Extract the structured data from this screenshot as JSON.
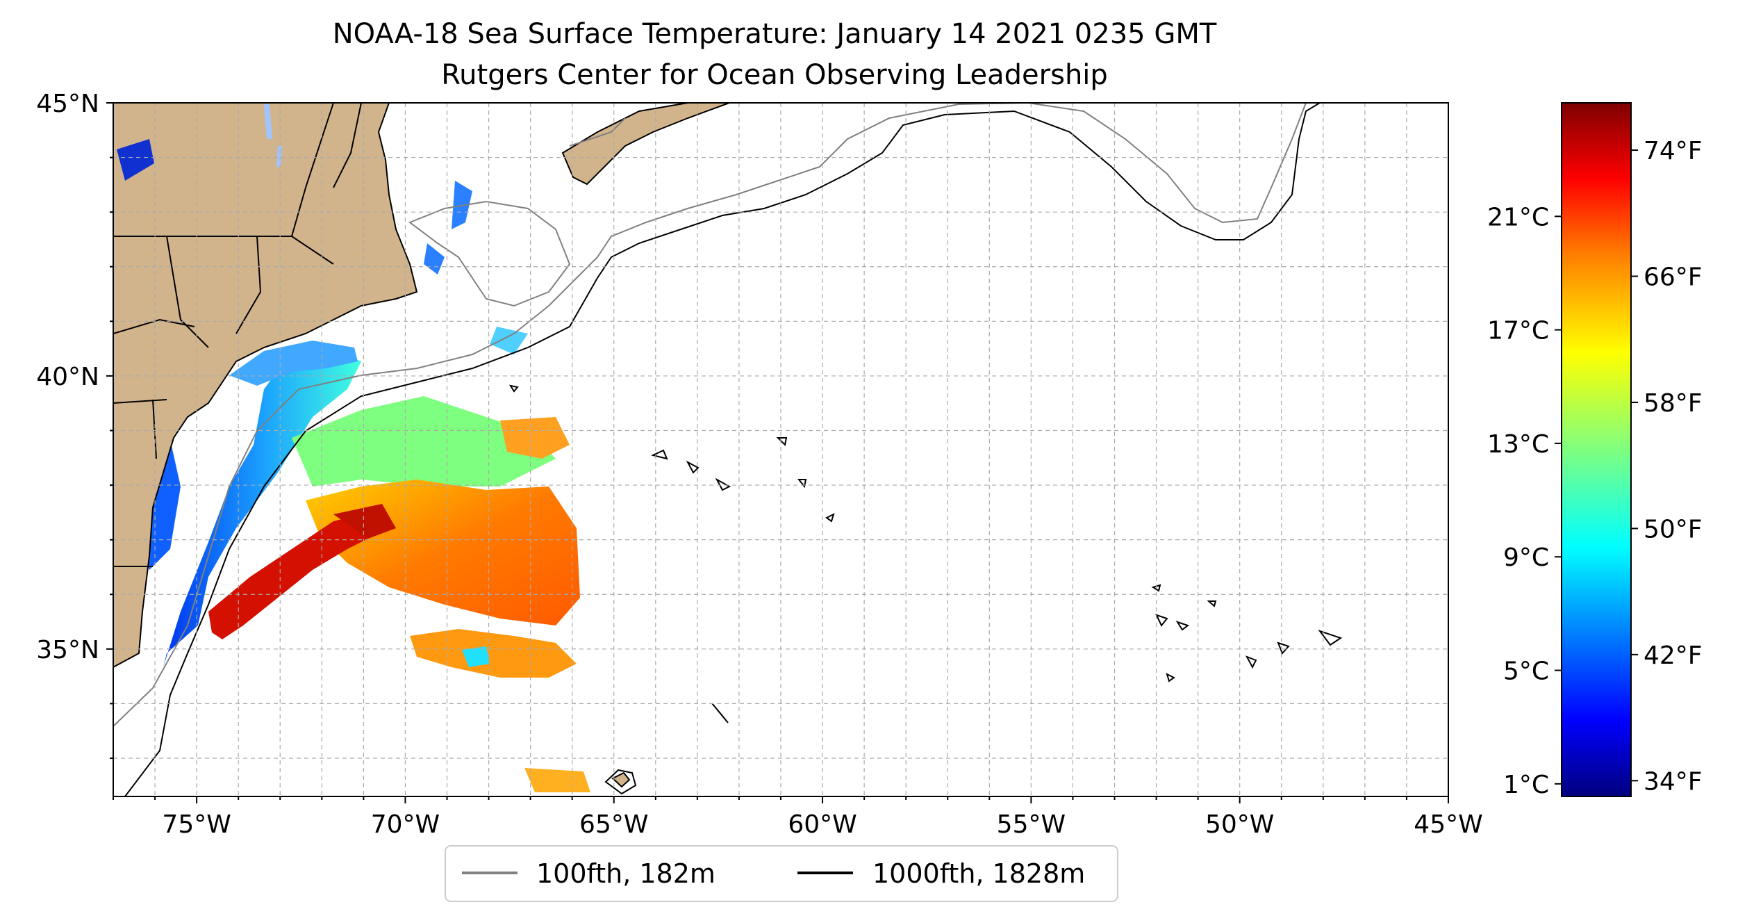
{
  "title": {
    "line1": "NOAA-18 Sea Surface Temperature: January 14 2021 0235 GMT",
    "line2": "Rutgers Center for Ocean Observing Leadership"
  },
  "map": {
    "lon_range": [
      -77,
      -45
    ],
    "lat_range": [
      32.3,
      45
    ],
    "x_ticks": [
      {
        "lon": -75,
        "label": "75°W"
      },
      {
        "lon": -70,
        "label": "70°W"
      },
      {
        "lon": -65,
        "label": "65°W"
      },
      {
        "lon": -60,
        "label": "60°W"
      },
      {
        "lon": -55,
        "label": "55°W"
      },
      {
        "lon": -50,
        "label": "50°W"
      },
      {
        "lon": -45,
        "label": "45°W"
      }
    ],
    "y_ticks": [
      {
        "lat": 45,
        "label": "45°N"
      },
      {
        "lat": 40,
        "label": "40°N"
      },
      {
        "lat": 35,
        "label": "35°N"
      }
    ],
    "gridlines": true,
    "land_color": "#d2b48c",
    "isobath_100_color": "#808080",
    "isobath_1000_color": "#000000"
  },
  "legend": {
    "position": "below map",
    "items": [
      {
        "label": "100fth, 182m",
        "color": "#808080"
      },
      {
        "label": "1000fth, 1828m",
        "color": "#000000"
      }
    ]
  },
  "colorbar": {
    "colormap": "jet",
    "range_f": [
      33,
      77
    ],
    "left_ticks": [
      {
        "value_f": 33.8,
        "label": "1°C"
      },
      {
        "value_f": 41,
        "label": "5°C"
      },
      {
        "value_f": 48.2,
        "label": "9°C"
      },
      {
        "value_f": 55.4,
        "label": "13°C"
      },
      {
        "value_f": 62.6,
        "label": "17°C"
      },
      {
        "value_f": 69.8,
        "label": "21°C"
      }
    ],
    "right_ticks": [
      {
        "value_f": 34,
        "label": "34°F"
      },
      {
        "value_f": 42,
        "label": "42°F"
      },
      {
        "value_f": 50,
        "label": "50°F"
      },
      {
        "value_f": 58,
        "label": "58°F"
      },
      {
        "value_f": 66,
        "label": "66°F"
      },
      {
        "value_f": 74,
        "label": "74°F"
      }
    ],
    "jet_stops": [
      "#00007f",
      "#0000ff",
      "#007fff",
      "#00ffff",
      "#7fff7f",
      "#ffff00",
      "#ff7f00",
      "#ff0000",
      "#7f0000"
    ]
  }
}
